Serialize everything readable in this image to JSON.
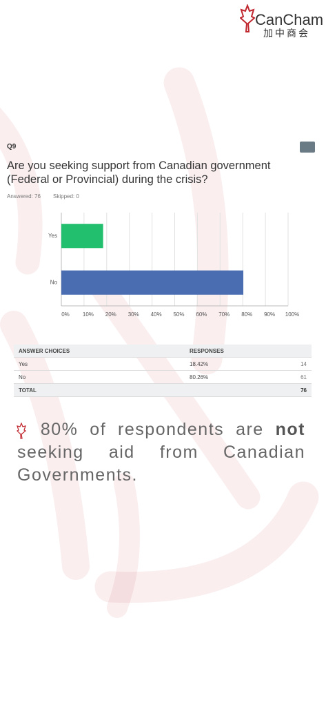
{
  "header": {
    "logo": "CanCham",
    "logo_cn": "加中商会"
  },
  "question": {
    "number": "Q9",
    "text": "Are you seeking support from Canadian government (Federal or Provincial) during the crisis?",
    "answered": "Answered: 76",
    "skipped": "Skipped: 0"
  },
  "chart_data": {
    "type": "hbar",
    "categories": [
      "Yes",
      "No"
    ],
    "values": [
      18.42,
      80.26
    ],
    "colors": [
      "#22bf6f",
      "#4a6db2"
    ],
    "xlim": [
      0,
      100
    ],
    "xticks": [
      {
        "value": 0,
        "label": "0%"
      },
      {
        "value": 10,
        "label": "10%"
      },
      {
        "value": 20,
        "label": "20%"
      },
      {
        "value": 30,
        "label": "30%"
      },
      {
        "value": 40,
        "label": "40%"
      },
      {
        "value": 50,
        "label": "50%"
      },
      {
        "value": 60,
        "label": "60%"
      },
      {
        "value": 70,
        "label": "70%"
      },
      {
        "value": 80,
        "label": "80%"
      },
      {
        "value": 90,
        "label": "90%"
      },
      {
        "value": 100,
        "label": "100%"
      }
    ],
    "grid": true
  },
  "table": {
    "header": [
      "ANSWER CHOICES",
      "RESPONSES"
    ],
    "rows": [
      [
        "Yes",
        "18.42%",
        "14"
      ],
      [
        "No",
        "80.26%",
        "61"
      ]
    ],
    "total": [
      "TOTAL",
      "76"
    ]
  },
  "summary": {
    "lead": "80% of respondents are ",
    "emphasis": "not",
    "rest": " seeking aid from Canadian Governments."
  }
}
